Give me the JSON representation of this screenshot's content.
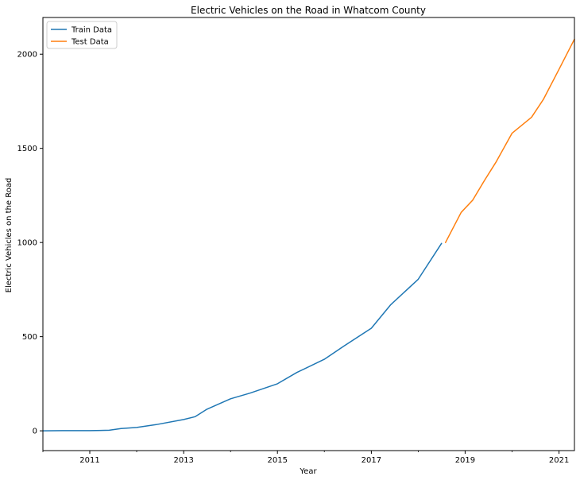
{
  "chart_data": {
    "type": "line",
    "title": "Electric Vehicles on the Road in Whatcom County",
    "xlabel": "Year",
    "ylabel": "Electric Vehicles on the Road",
    "xlim": [
      "2010-01-01",
      "2021-05-01"
    ],
    "ylim": [
      -105,
      2195
    ],
    "x_ticks": [
      "2011",
      "2013",
      "2015",
      "2017",
      "2019",
      "2021"
    ],
    "y_ticks": [
      0,
      500,
      1000,
      1500,
      2000
    ],
    "grid": false,
    "legend_position": "top-left",
    "series": [
      {
        "name": "Train Data",
        "color": "#1f77b4",
        "points": [
          {
            "x": "2010-01-01",
            "y": 0
          },
          {
            "x": "2010-06-01",
            "y": 1
          },
          {
            "x": "2011-01-01",
            "y": 1
          },
          {
            "x": "2011-06-01",
            "y": 3
          },
          {
            "x": "2011-09-01",
            "y": 12
          },
          {
            "x": "2012-01-01",
            "y": 18
          },
          {
            "x": "2012-06-01",
            "y": 33
          },
          {
            "x": "2013-01-01",
            "y": 60
          },
          {
            "x": "2013-04-01",
            "y": 75
          },
          {
            "x": "2013-07-01",
            "y": 115
          },
          {
            "x": "2014-01-01",
            "y": 170
          },
          {
            "x": "2014-06-01",
            "y": 200
          },
          {
            "x": "2015-01-01",
            "y": 250
          },
          {
            "x": "2015-06-01",
            "y": 310
          },
          {
            "x": "2016-01-01",
            "y": 380
          },
          {
            "x": "2016-06-01",
            "y": 450
          },
          {
            "x": "2017-01-01",
            "y": 545
          },
          {
            "x": "2017-06-01",
            "y": 670
          },
          {
            "x": "2018-01-01",
            "y": 805
          },
          {
            "x": "2018-07-01",
            "y": 995
          }
        ]
      },
      {
        "name": "Test Data",
        "color": "#ff7f0e",
        "points": [
          {
            "x": "2018-08-01",
            "y": 1000
          },
          {
            "x": "2018-12-01",
            "y": 1160
          },
          {
            "x": "2019-03-01",
            "y": 1225
          },
          {
            "x": "2019-06-01",
            "y": 1330
          },
          {
            "x": "2019-09-01",
            "y": 1430
          },
          {
            "x": "2020-01-01",
            "y": 1580
          },
          {
            "x": "2020-06-01",
            "y": 1665
          },
          {
            "x": "2020-09-01",
            "y": 1760
          },
          {
            "x": "2021-01-01",
            "y": 1920
          },
          {
            "x": "2021-05-01",
            "y": 2080
          }
        ]
      }
    ]
  }
}
